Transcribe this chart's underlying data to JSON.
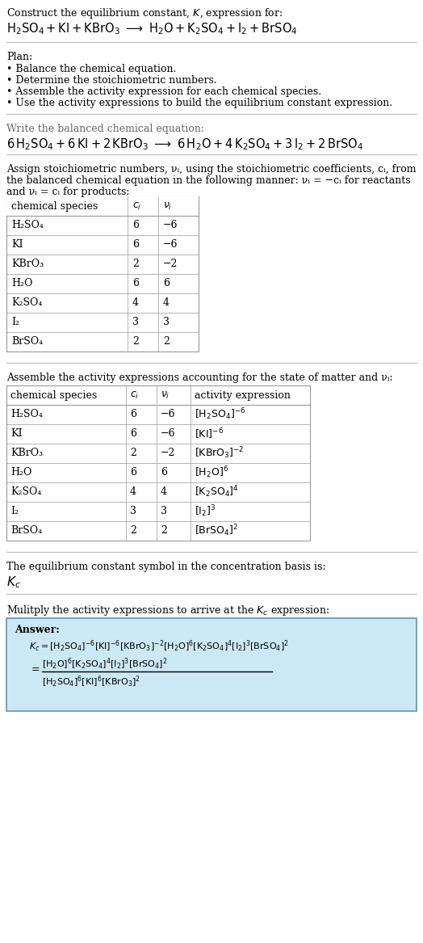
{
  "bg_color": "#ffffff",
  "text_color": "#000000",
  "gray_color": "#666666",
  "title_line1": "Construct the equilibrium constant, $K$, expression for:",
  "title_line2_plain": "H₂SO₄ + KI + KBrO₃  ⟶  H₂O + K₂SO₄ + I₂ + BrSO₄",
  "plan_header": "Plan:",
  "plan_items": [
    "Balance the chemical equation.",
    "Determine the stoichiometric numbers.",
    "Assemble the activity expression for each chemical species.",
    "Use the activity expressions to build the equilibrium constant expression."
  ],
  "balanced_header": "Write the balanced chemical equation:",
  "stoich_header1": "Assign stoichiometric numbers, νᵢ, using the stoichiometric coefficients, cᵢ, from",
  "stoich_header2": "the balanced chemical equation in the following manner: νᵢ = −cᵢ for reactants",
  "stoich_header3": "and νᵢ = cᵢ for products:",
  "table1_cols": [
    "chemical species",
    "ci",
    "vi"
  ],
  "table1_rows": [
    [
      "H₂SO₄",
      "6",
      "−6"
    ],
    [
      "KI",
      "6",
      "−6"
    ],
    [
      "KBrO₃",
      "2",
      "−2"
    ],
    [
      "H₂O",
      "6",
      "6"
    ],
    [
      "K₂SO₄",
      "4",
      "4"
    ],
    [
      "I₂",
      "3",
      "3"
    ],
    [
      "BrSO₄",
      "2",
      "2"
    ]
  ],
  "activity_header": "Assemble the activity expressions accounting for the state of matter and νᵢ:",
  "table2_cols": [
    "chemical species",
    "ci",
    "vi",
    "activity expression"
  ],
  "table2_rows": [
    [
      "H₂SO₄",
      "6",
      "−6",
      "[H₂SO₄]⁻⁶"
    ],
    [
      "KI",
      "6",
      "−6",
      "[KI]⁻⁶"
    ],
    [
      "KBrO₃",
      "2",
      "−2",
      "[KBrO₃]⁻²"
    ],
    [
      "H₂O",
      "6",
      "6",
      "[H₂O]⁶"
    ],
    [
      "K₂SO₄",
      "4",
      "4",
      "[K₂SO₄]⁴"
    ],
    [
      "I₂",
      "3",
      "3",
      "[I₂]³"
    ],
    [
      "BrSO₄",
      "2",
      "2",
      "[BrSO₄]²"
    ]
  ],
  "kc_header": "The equilibrium constant symbol in the concentration basis is:",
  "multiply_header": "Mulitply the activity expressions to arrive at the Kᴄ expression:",
  "answer_label": "Answer:",
  "answer_box_color": "#cce8f4",
  "answer_box_edge": "#5599bb",
  "table_border_color": "#999999",
  "table_header_color": "#dddddd"
}
